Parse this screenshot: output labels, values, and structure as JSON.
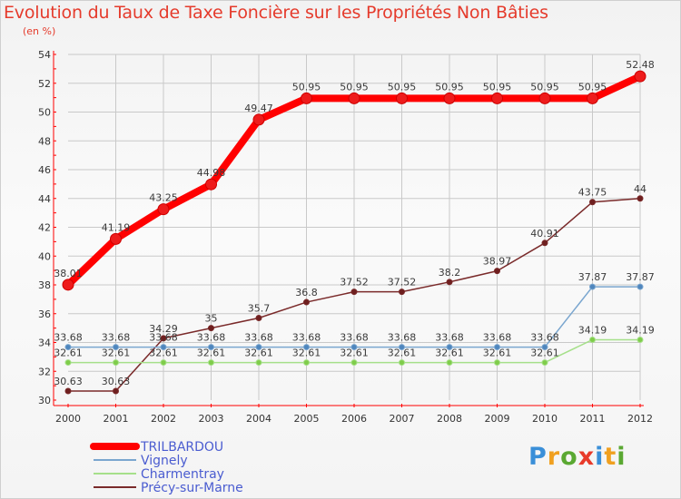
{
  "header": {
    "title": "Evolution du Taux de Taxe Foncière sur les Propriétés Non Bâties",
    "unit": "(en %)"
  },
  "logo": {
    "letters": [
      "P",
      "r",
      "o",
      "x",
      "i",
      "t",
      "i"
    ],
    "colors": [
      "#3a8fd8",
      "#f0a020",
      "#5aa832",
      "#e83a2a",
      "#3a8fd8",
      "#f0a020",
      "#5aa832"
    ]
  },
  "colors": {
    "axis": "#ff0000",
    "grid": "#c9c9c9",
    "tick_text": "#333333"
  },
  "chart_data": {
    "type": "line",
    "title": "Evolution du Taux de Taxe Foncière sur les Propriétés Non Bâties",
    "ylabel": "(en %)",
    "xlabel": "",
    "ylim": [
      30,
      54
    ],
    "yticks": [
      30,
      32,
      34,
      36,
      38,
      40,
      42,
      44,
      46,
      48,
      50,
      52,
      54
    ],
    "grid": true,
    "legend_position": "bottom-left",
    "x": [
      "2000",
      "2001",
      "2002",
      "2003",
      "2004",
      "2005",
      "2006",
      "2007",
      "2008",
      "2009",
      "2010",
      "2011",
      "2012"
    ],
    "series": [
      {
        "name": "TRILBARDOU",
        "color": "#ff0000",
        "marker": "#ee1c1c",
        "values": [
          38.01,
          41.19,
          43.25,
          44.98,
          49.47,
          50.95,
          50.95,
          50.95,
          50.95,
          50.95,
          50.95,
          50.95,
          52.48
        ],
        "labels": [
          "38.01",
          "41.19",
          "43.25",
          "44.98",
          "49.47",
          "50.95",
          "50.95",
          "50.95",
          "50.95",
          "50.95",
          "50.95",
          "50.95",
          "52.48"
        ]
      },
      {
        "name": "Vignely",
        "color": "#7aa6cf",
        "marker": "#4f86bd",
        "values": [
          33.68,
          33.68,
          33.68,
          33.68,
          33.68,
          33.68,
          33.68,
          33.68,
          33.68,
          33.68,
          33.68,
          37.87,
          37.87
        ],
        "labels": [
          "33.68",
          "33.68",
          "33.68",
          "33.68",
          "33.68",
          "33.68",
          "33.68",
          "33.68",
          "33.68",
          "33.68",
          "33.68",
          "37.87",
          "37.87"
        ]
      },
      {
        "name": "Charmentray",
        "color": "#a6e08a",
        "marker": "#7fcc4a",
        "values": [
          32.61,
          32.61,
          32.61,
          32.61,
          32.61,
          32.61,
          32.61,
          32.61,
          32.61,
          32.61,
          32.61,
          34.19,
          34.19
        ],
        "labels": [
          "32.61",
          "32.61",
          "32.61",
          "32.61",
          "32.61",
          "32.61",
          "32.61",
          "32.61",
          "32.61",
          "32.61",
          "32.61",
          "34.19",
          "34.19"
        ]
      },
      {
        "name": "Précy-sur-Marne",
        "color": "#7a2a2a",
        "marker": "#6e1f1f",
        "values": [
          30.63,
          30.63,
          34.29,
          35,
          35.7,
          36.8,
          37.52,
          37.52,
          38.2,
          38.97,
          40.91,
          43.75,
          44
        ],
        "labels": [
          "30.63",
          "30.63",
          "34.29",
          "35",
          "35.7",
          "36.8",
          "37.52",
          "37.52",
          "38.2",
          "38.97",
          "40.91",
          "43.75",
          "44"
        ]
      }
    ]
  }
}
